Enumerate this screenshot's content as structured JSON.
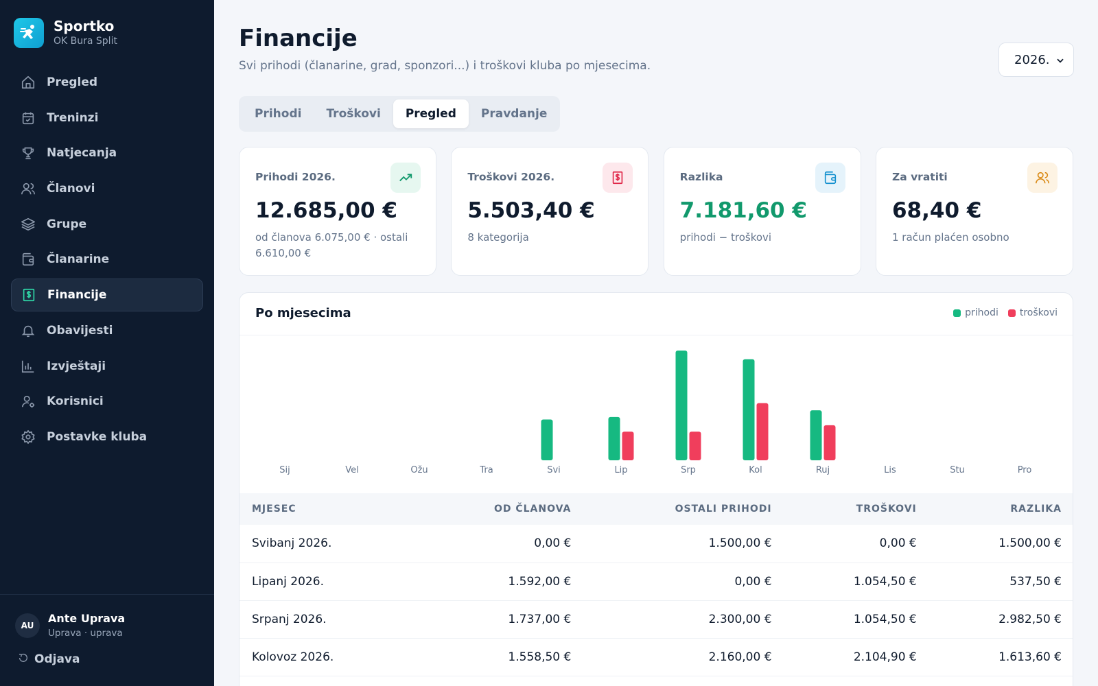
{
  "brand": {
    "name": "Sportko",
    "club": "OK Bura Split"
  },
  "nav": {
    "items": [
      {
        "label": "Pregled",
        "icon": "home-icon"
      },
      {
        "label": "Treninzi",
        "icon": "calendar-icon"
      },
      {
        "label": "Natjecanja",
        "icon": "trophy-icon"
      },
      {
        "label": "Članovi",
        "icon": "users-icon"
      },
      {
        "label": "Grupe",
        "icon": "layers-icon"
      },
      {
        "label": "Članarine",
        "icon": "wallet-icon"
      },
      {
        "label": "Financije",
        "icon": "dollar-receipt-icon",
        "active": true
      },
      {
        "label": "Obavijesti",
        "icon": "bell-icon"
      },
      {
        "label": "Izvještaji",
        "icon": "bar-chart-icon"
      },
      {
        "label": "Korisnici",
        "icon": "user-settings-icon"
      },
      {
        "label": "Postavke kluba",
        "icon": "gear-icon"
      }
    ]
  },
  "user": {
    "initials": "AU",
    "name": "Ante Uprava",
    "role": "Uprava · uprava",
    "logout": "Odjava"
  },
  "page": {
    "title": "Financije",
    "subtitle": "Svi prihodi (članarine, grad, sponzori...) i troškovi kluba po mjesecima.",
    "year": "2026."
  },
  "tabs": [
    "Prihodi",
    "Troškovi",
    "Pregled",
    "Pravdanje"
  ],
  "active_tab": "Pregled",
  "cards": [
    {
      "title": "Prihodi 2026.",
      "value": "12.685,00 €",
      "note": "od članova 6.075,00 € · ostali 6.610,00 €",
      "icon": "trending-up-icon"
    },
    {
      "title": "Troškovi 2026.",
      "value": "5.503,40 €",
      "note": "8 kategorija",
      "icon": "receipt-icon"
    },
    {
      "title": "Razlika",
      "value": "7.181,60 €",
      "note": "prihodi − troškovi",
      "icon": "wallet-icon"
    },
    {
      "title": "Za vratiti",
      "value": "68,40 €",
      "note": "1 račun plaćen osobno",
      "icon": "users-icon"
    }
  ],
  "panel": {
    "title": "Po mjesecima",
    "legend_income": "prihodi",
    "legend_expense": "troškovi"
  },
  "colors": {
    "income": "#16b981",
    "expense": "#f03e5c",
    "accent": "#11996c"
  },
  "chart_data": {
    "type": "bar",
    "categories": [
      "Sij",
      "Vel",
      "Ožu",
      "Tra",
      "Svi",
      "Lip",
      "Srp",
      "Kol",
      "Ruj",
      "Lis",
      "Stu",
      "Pro"
    ],
    "series": [
      {
        "name": "prihodi",
        "values": [
          0,
          0,
          0,
          0,
          1500,
          1592,
          4037,
          3718.5,
          1837.5,
          0,
          0,
          0
        ]
      },
      {
        "name": "troškovi",
        "values": [
          0,
          0,
          0,
          0,
          0,
          1054.5,
          1054.5,
          2104.9,
          1289.5,
          0,
          0,
          0
        ]
      }
    ],
    "ylim": [
      0,
      4037
    ]
  },
  "table": {
    "headers": [
      "MJESEC",
      "OD ČLANOVA",
      "OSTALI PRIHODI",
      "TROŠKOVI",
      "RAZLIKA"
    ],
    "rows": [
      [
        "Svibanj 2026.",
        "0,00 €",
        "1.500,00 €",
        "0,00 €",
        "1.500,00 €"
      ],
      [
        "Lipanj 2026.",
        "1.592,00 €",
        "0,00 €",
        "1.054,50 €",
        "537,50 €"
      ],
      [
        "Srpanj 2026.",
        "1.737,00 €",
        "2.300,00 €",
        "1.054,50 €",
        "2.982,50 €"
      ],
      [
        "Kolovoz 2026.",
        "1.558,50 €",
        "2.160,00 €",
        "2.104,90 €",
        "1.613,60 €"
      ]
    ]
  }
}
